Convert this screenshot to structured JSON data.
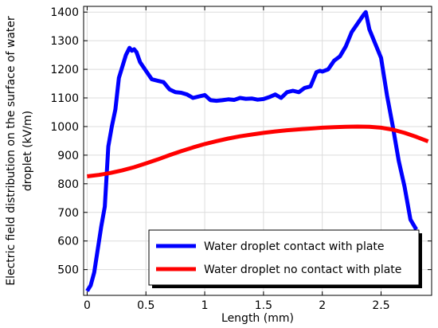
{
  "chart_data": {
    "type": "line",
    "xlabel": "Length (mm)",
    "ylabel_lines": [
      "Electric field distribution on the surface of water",
      "droplet (kV/m)"
    ],
    "xlim": [
      -0.03,
      2.93
    ],
    "ylim": [
      410,
      1420
    ],
    "xticks": [
      0,
      0.5,
      1,
      1.5,
      2,
      2.5
    ],
    "xtick_labels": [
      "0",
      "0.5",
      "1",
      "1.5",
      "2",
      "2.5"
    ],
    "yticks": [
      500,
      600,
      700,
      800,
      900,
      1000,
      1100,
      1200,
      1300,
      1400
    ],
    "ytick_labels": [
      "500",
      "600",
      "700",
      "800",
      "900",
      "1000",
      "1100",
      "1200",
      "1300",
      "1400"
    ],
    "grid": true,
    "legend_position": "bottom-right",
    "series": [
      {
        "name": "Water droplet contact with plate",
        "color": "#0000ff",
        "x": [
          0,
          0.03,
          0.06,
          0.09,
          0.12,
          0.15,
          0.18,
          0.21,
          0.24,
          0.27,
          0.3,
          0.33,
          0.36,
          0.38,
          0.4,
          0.42,
          0.45,
          0.5,
          0.55,
          0.6,
          0.65,
          0.7,
          0.75,
          0.8,
          0.85,
          0.9,
          0.95,
          1.0,
          1.05,
          1.1,
          1.15,
          1.2,
          1.25,
          1.3,
          1.35,
          1.4,
          1.45,
          1.5,
          1.55,
          1.6,
          1.65,
          1.7,
          1.75,
          1.8,
          1.85,
          1.9,
          1.95,
          1.98,
          2.0,
          2.05,
          2.1,
          2.15,
          2.2,
          2.25,
          2.3,
          2.35,
          2.37,
          2.4,
          2.45,
          2.5,
          2.55,
          2.6,
          2.65,
          2.7,
          2.75,
          2.8
        ],
        "values": [
          425,
          445,
          490,
          570,
          650,
          720,
          930,
          1000,
          1060,
          1170,
          1210,
          1250,
          1275,
          1265,
          1270,
          1260,
          1225,
          1195,
          1165,
          1160,
          1155,
          1130,
          1120,
          1118,
          1112,
          1100,
          1105,
          1110,
          1092,
          1090,
          1092,
          1095,
          1093,
          1100,
          1097,
          1098,
          1094,
          1096,
          1103,
          1112,
          1100,
          1120,
          1125,
          1120,
          1135,
          1140,
          1190,
          1195,
          1192,
          1200,
          1230,
          1245,
          1280,
          1330,
          1360,
          1390,
          1400,
          1340,
          1290,
          1240,
          1110,
          1000,
          880,
          790,
          675,
          640
        ]
      },
      {
        "name": "Water droplet no contact with plate",
        "color": "#ff0000",
        "x": [
          0,
          0.1,
          0.2,
          0.3,
          0.4,
          0.5,
          0.6,
          0.7,
          0.8,
          0.9,
          1.0,
          1.1,
          1.2,
          1.3,
          1.4,
          1.5,
          1.6,
          1.7,
          1.8,
          1.9,
          2.0,
          2.1,
          2.2,
          2.3,
          2.4,
          2.5,
          2.6,
          2.7,
          2.8,
          2.9
        ],
        "values": [
          826,
          831,
          838,
          847,
          858,
          871,
          885,
          900,
          914,
          927,
          939,
          949,
          958,
          966,
          972,
          978,
          983,
          987,
          990,
          993,
          996,
          998,
          999,
          1000,
          999,
          996,
          989,
          978,
          964,
          948
        ]
      }
    ]
  }
}
